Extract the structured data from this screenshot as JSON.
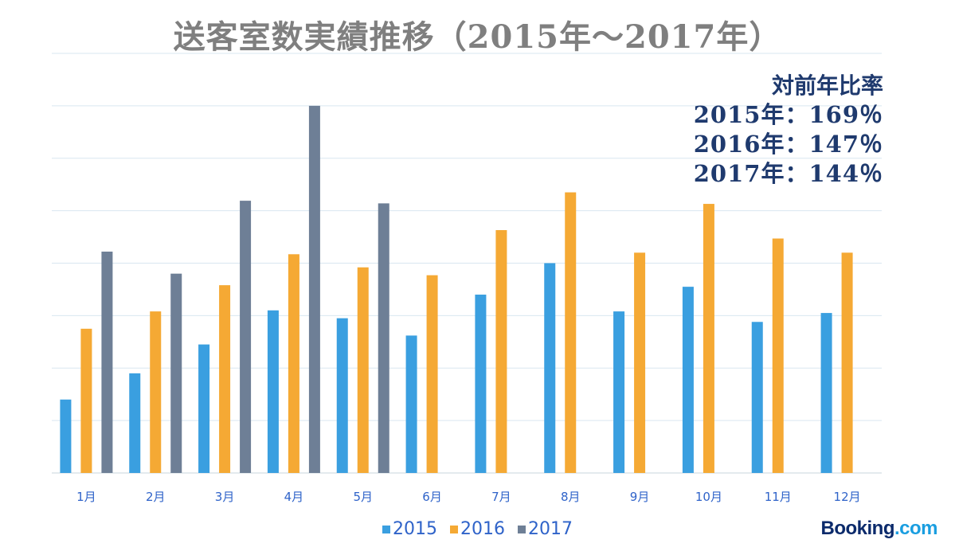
{
  "chart_data": {
    "type": "bar",
    "title": "送客室数実績推移（2015年〜2017年）",
    "categories": [
      "1月",
      "2月",
      "3月",
      "4月",
      "5月",
      "6月",
      "7月",
      "8月",
      "9月",
      "10月",
      "11月",
      "12月"
    ],
    "series": [
      {
        "name": "2015",
        "color": "#3a9fe0",
        "values": [
          1.4,
          1.9,
          2.45,
          3.1,
          2.95,
          2.62,
          3.4,
          4.0,
          3.08,
          3.55,
          2.88,
          3.05
        ]
      },
      {
        "name": "2016",
        "color": "#f5a934",
        "values": [
          2.75,
          3.08,
          3.58,
          4.17,
          3.92,
          3.77,
          4.63,
          5.35,
          4.2,
          5.13,
          4.47,
          4.2
        ]
      },
      {
        "name": "2017",
        "color": "#6e7f96",
        "values": [
          4.22,
          3.8,
          5.19,
          7.0,
          5.14,
          null,
          null,
          null,
          null,
          null,
          null,
          null
        ]
      }
    ],
    "ylim": [
      0,
      8
    ],
    "grid": true,
    "legend": "bottom"
  },
  "yoy": {
    "title": "対前年比率",
    "lines": [
      "2015年：169％",
      "2016年：147％",
      "2017年：144％"
    ]
  },
  "brand": {
    "name": "Booking",
    "suffix": ".com"
  }
}
